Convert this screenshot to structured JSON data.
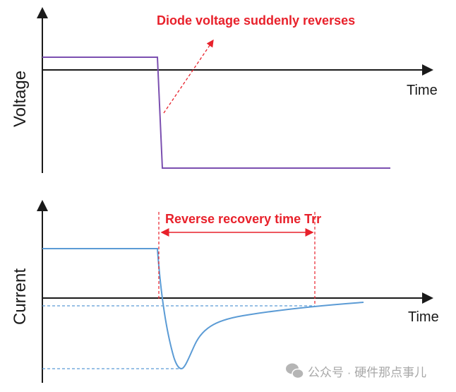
{
  "voltage_panel": {
    "y_label": "Voltage",
    "x_label": "Time",
    "annotation": "Diode voltage suddenly reverses"
  },
  "current_panel": {
    "y_label": "Current",
    "x_label": "Time",
    "annotation": "Reverse recovery time Trr"
  },
  "watermark": "公众号 · 硬件那点事儿",
  "colors": {
    "voltage_trace": "#7b4fb0",
    "current_trace": "#5b9bd5",
    "annotation": "#e8212b",
    "axis": "#1a1a1a"
  }
}
